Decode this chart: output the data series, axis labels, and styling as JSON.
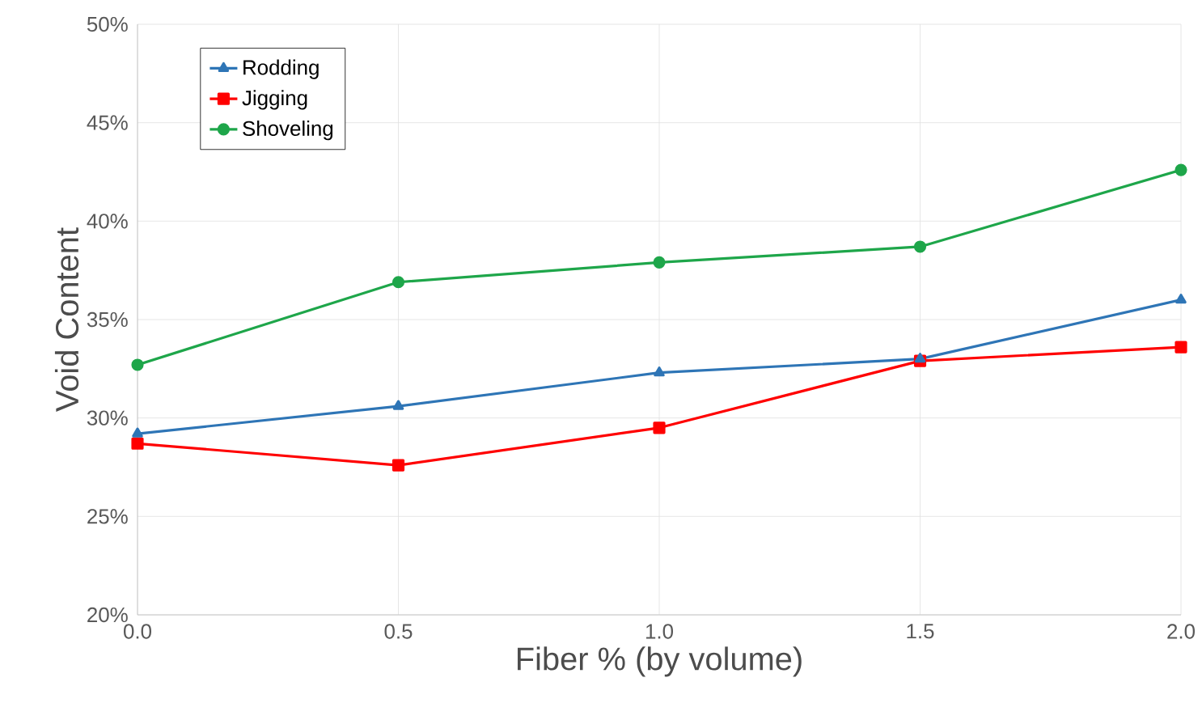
{
  "chart_data": {
    "type": "line",
    "xlabel": "Fiber % (by volume)",
    "ylabel": "Void Content",
    "x": [
      0.0,
      0.5,
      1.0,
      1.5,
      2.0
    ],
    "series": [
      {
        "name": "Rodding",
        "color": "#2e75b6",
        "marker": "triangle",
        "values": [
          29.2,
          30.6,
          32.3,
          33.0,
          36.0
        ]
      },
      {
        "name": "Jigging",
        "color": "#ff0000",
        "marker": "square",
        "values": [
          28.7,
          27.6,
          29.5,
          32.9,
          33.6
        ]
      },
      {
        "name": "Shoveling",
        "color": "#1ea64a",
        "marker": "circle",
        "values": [
          32.7,
          36.9,
          37.9,
          38.7,
          42.6
        ]
      }
    ],
    "xlim": [
      0,
      2
    ],
    "ylim": [
      20,
      50
    ],
    "xticks": [
      {
        "value": 0,
        "label": "0.0"
      },
      {
        "value": 0.5,
        "label": "0.5"
      },
      {
        "value": 1,
        "label": "1.0"
      },
      {
        "value": 1.5,
        "label": "1.5"
      },
      {
        "value": 2,
        "label": "2.0"
      }
    ],
    "yticks": [
      {
        "value": 20,
        "label": "20%"
      },
      {
        "value": 25,
        "label": "25%"
      },
      {
        "value": 30,
        "label": "30%"
      },
      {
        "value": 35,
        "label": "35%"
      },
      {
        "value": 40,
        "label": "40%"
      },
      {
        "value": 45,
        "label": "45%"
      },
      {
        "value": 50,
        "label": "50%"
      }
    ],
    "grid": true,
    "legend": "top left",
    "line_style": "solid"
  }
}
